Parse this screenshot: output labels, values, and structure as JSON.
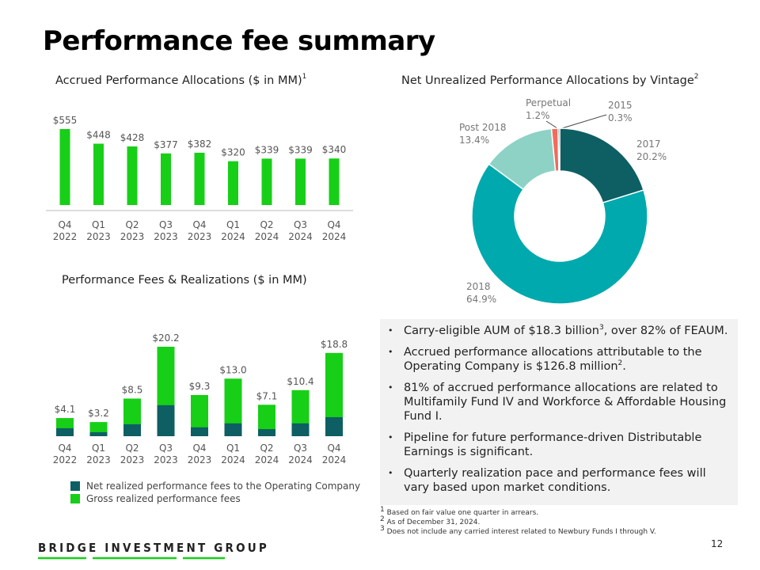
{
  "title": "Performance fee summary",
  "chart_data": [
    {
      "type": "bar",
      "title": "Accrued Performance Allocations ($ in MM)",
      "title_note": "1",
      "categories": [
        "Q4 2022",
        "Q1 2023",
        "Q2 2023",
        "Q3 2023",
        "Q4 2023",
        "Q1 2024",
        "Q2 2024",
        "Q3 2024",
        "Q4 2024"
      ],
      "values": [
        555,
        448,
        428,
        377,
        382,
        320,
        339,
        339,
        340
      ],
      "value_labels": [
        "$555",
        "$448",
        "$428",
        "$377",
        "$382",
        "$320",
        "$339",
        "$339",
        "$340"
      ],
      "color": "#17cf17"
    },
    {
      "type": "pie",
      "title": "Net Unrealized Performance Allocations by Vintage",
      "title_note": "2",
      "categories": [
        "2017",
        "2018",
        "Post 2018",
        "Perpetual",
        "2015"
      ],
      "values": [
        20.2,
        64.9,
        13.4,
        1.2,
        0.3
      ],
      "value_labels": [
        "20.2%",
        "64.9%",
        "13.4%",
        "1.2%",
        "0.3%"
      ],
      "colors": [
        "#0d5f63",
        "#00a9ad",
        "#8ed2c6",
        "#f26b5b",
        "#3a4a4c"
      ]
    },
    {
      "type": "bar",
      "title": "Performance Fees & Realizations ($ in MM)",
      "categories": [
        "Q4 2022",
        "Q1 2023",
        "Q2 2023",
        "Q3 2023",
        "Q4 2023",
        "Q1 2024",
        "Q2 2024",
        "Q3 2024",
        "Q4 2024"
      ],
      "series": [
        {
          "name": "Net realized performance fees to the Operating Company",
          "color": "#0d5f63",
          "values": [
            1.8,
            0.9,
            2.7,
            7.0,
            2.0,
            2.9,
            1.6,
            2.9,
            4.3
          ]
        },
        {
          "name": "Gross realized performance fees",
          "color": "#17cf17",
          "values": [
            4.1,
            3.2,
            8.5,
            20.2,
            9.3,
            13,
            7.1,
            10.4,
            18.8
          ],
          "value_labels": [
            "$4.1",
            "$3.2",
            "$8.5",
            "$20.2",
            "$9.3",
            "$13.0",
            "$7.1",
            "$10.4",
            "$18.8"
          ]
        }
      ]
    }
  ],
  "bullets": [
    [
      "Carry-eligible AUM of $18.3 billion",
      "3",
      ", over 82% of FEAUM."
    ],
    [
      "Accrued performance allocations attributable to the Operating Company is $126.8 million",
      "2",
      "."
    ],
    [
      "81% of accrued performance allocations are related to Multifamily Fund IV and Workforce & Affordable Housing Fund I."
    ],
    [
      "Pipeline for future performance-driven Distributable Earnings is significant."
    ],
    [
      "Quarterly realization pace and performance fees will vary based upon market conditions."
    ]
  ],
  "footnotes": [
    {
      "mark": "1",
      "text": "Based on fair value one quarter in arrears."
    },
    {
      "mark": "2",
      "text": "As of December 31, 2024."
    },
    {
      "mark": "3",
      "text": "Does not include any carried interest related to Newbury Funds I through V."
    }
  ],
  "company": "BRIDGE INVESTMENT GROUP",
  "page_number": "12"
}
